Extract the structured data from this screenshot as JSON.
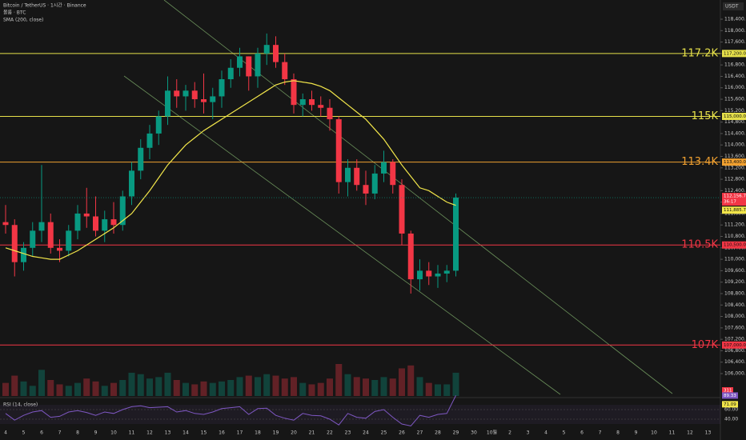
{
  "chart_data": {
    "type": "candlestick",
    "title": "Bitcoin / TetherUS · 1시간 · Binance",
    "volume_title": "볼륨 · BTC",
    "sma_title": "SMA (200, close)",
    "currency": "USDT",
    "up_color": "#089981",
    "down_color": "#f23645",
    "sma_color": "#f2e64a",
    "grid": false,
    "xticks": [
      "4",
      "5",
      "6",
      "7",
      "8",
      "9",
      "10",
      "11",
      "12",
      "13",
      "14",
      "15",
      "16",
      "17",
      "18",
      "19",
      "20",
      "21",
      "22",
      "23",
      "24",
      "25",
      "26",
      "27",
      "28",
      "29",
      "30",
      "10월",
      "2",
      "3",
      "4",
      "5",
      "6",
      "7",
      "8",
      "9",
      "10",
      "11",
      "12",
      "13"
    ],
    "open": [
      111300,
      111200,
      109900,
      110400,
      111000,
      111300,
      110400,
      110300,
      111000,
      111600,
      111500,
      111000,
      111400,
      111200,
      112200,
      113100,
      113900,
      114400,
      115000,
      115900,
      115700,
      115900,
      115600,
      115500,
      115700,
      116300,
      116700,
      117100,
      116400,
      117200,
      117500,
      116900,
      116300,
      115400,
      115600,
      115400,
      115300,
      114900,
      112700,
      113200,
      112600,
      112300,
      113000,
      113400,
      112600,
      110900,
      109300,
      109600,
      109400,
      109500,
      109600
    ],
    "high": [
      111900,
      111400,
      110600,
      111300,
      113300,
      111600,
      110700,
      111200,
      111900,
      112500,
      112200,
      111700,
      112000,
      112400,
      113400,
      114200,
      114700,
      115200,
      116400,
      116300,
      116100,
      116200,
      116500,
      116000,
      116600,
      117000,
      117400,
      117100,
      117400,
      117900,
      117800,
      117200,
      116500,
      115800,
      115900,
      115700,
      115600,
      115000,
      113500,
      113500,
      113100,
      113300,
      113800,
      113500,
      112800,
      111000,
      110000,
      109900,
      109800,
      109800,
      112300
    ],
    "low": [
      110900,
      109400,
      109600,
      110100,
      110600,
      110200,
      109900,
      110100,
      110700,
      111100,
      110800,
      110600,
      110900,
      111000,
      111900,
      112800,
      113500,
      114000,
      114700,
      115300,
      115200,
      115300,
      115100,
      114900,
      115300,
      116000,
      116400,
      115900,
      116000,
      116800,
      116700,
      116100,
      115100,
      115000,
      115200,
      115000,
      114500,
      112300,
      112200,
      112400,
      111900,
      112100,
      112700,
      112300,
      110500,
      108800,
      108900,
      109100,
      109000,
      109200,
      109400
    ],
    "close": [
      111200,
      109900,
      110400,
      111000,
      111300,
      110400,
      110300,
      111000,
      111600,
      111500,
      111000,
      111400,
      111200,
      112200,
      113100,
      113900,
      114400,
      115000,
      115900,
      115700,
      115900,
      115600,
      115500,
      115700,
      116300,
      116700,
      117100,
      116400,
      117200,
      117500,
      116900,
      116300,
      115400,
      115600,
      115400,
      115300,
      114900,
      112700,
      113200,
      112600,
      112300,
      113000,
      113400,
      112600,
      110900,
      109300,
      109600,
      109400,
      109500,
      109600,
      112156.78
    ],
    "sma": [
      110400,
      110300,
      110200,
      110100,
      110050,
      110000,
      110000,
      110150,
      110300,
      110500,
      110700,
      110900,
      111100,
      111350,
      111600,
      112000,
      112400,
      112850,
      113300,
      113650,
      114000,
      114250,
      114500,
      114700,
      114900,
      115100,
      115300,
      115500,
      115700,
      115900,
      116100,
      116200,
      116250,
      116200,
      116150,
      116050,
      115900,
      115650,
      115400,
      115150,
      114900,
      114550,
      114200,
      113750,
      113300,
      112900,
      112500,
      112400,
      112200,
      112000,
      111885.76
    ],
    "volume": [
      900,
      1400,
      1000,
      700,
      1800,
      1100,
      800,
      700,
      900,
      1200,
      1000,
      700,
      900,
      1100,
      1600,
      1500,
      1200,
      1300,
      1600,
      1100,
      900,
      800,
      1000,
      900,
      1000,
      1100,
      1300,
      1400,
      1300,
      1500,
      1400,
      1200,
      1300,
      900,
      800,
      900,
      1200,
      2200,
      1500,
      1300,
      1200,
      1100,
      1300,
      1200,
      1900,
      2100,
      1300,
      900,
      800,
      800,
      1600
    ],
    "volume_label": "311",
    "rsi_title": "RSI (14, close)",
    "rsi": [
      52,
      38,
      48,
      55,
      58,
      44,
      46,
      55,
      58,
      54,
      48,
      55,
      52,
      60,
      66,
      68,
      64,
      65,
      66,
      55,
      58,
      52,
      50,
      55,
      62,
      64,
      66,
      50,
      62,
      63,
      48,
      42,
      38,
      52,
      48,
      47,
      40,
      28,
      52,
      44,
      42,
      56,
      60,
      44,
      30,
      26,
      48,
      44,
      50,
      52,
      89.33
    ],
    "rsi_ma_last": 71.09,
    "rsi_ylim": [
      30,
      100
    ],
    "rsi_yticks": [
      {
        "value": 60,
        "label": "60.00"
      },
      {
        "value": 40,
        "label": "40.00"
      }
    ],
    "ylim": [
      105800,
      118700
    ],
    "yticks": [
      {
        "value": 106000,
        "label": "106,000.00"
      },
      {
        "value": 106400,
        "label": "106,400.00"
      },
      {
        "value": 106800,
        "label": "106,800.00"
      },
      {
        "value": 107200,
        "label": "107,200.00"
      },
      {
        "value": 107600,
        "label": "107,600.00"
      },
      {
        "value": 108000,
        "label": "108,000.00"
      },
      {
        "value": 108400,
        "label": "108,400.00"
      },
      {
        "value": 108800,
        "label": "108,800.00"
      },
      {
        "value": 109200,
        "label": "109,200.00"
      },
      {
        "value": 109600,
        "label": "109,600.00"
      },
      {
        "value": 110000,
        "label": "110,000.00"
      },
      {
        "value": 110400,
        "label": "110,400.00"
      },
      {
        "value": 110800,
        "label": "110,800.00"
      },
      {
        "value": 111200,
        "label": "111,200.00"
      },
      {
        "value": 111600,
        "label": "111,600.00"
      },
      {
        "value": 112000,
        "label": "112,000.00"
      },
      {
        "value": 112400,
        "label": "112,400.00"
      },
      {
        "value": 112800,
        "label": "112,800.00"
      },
      {
        "value": 113200,
        "label": "113,200.00"
      },
      {
        "value": 113600,
        "label": "113,600.00"
      },
      {
        "value": 114000,
        "label": "114,000.00"
      },
      {
        "value": 114400,
        "label": "114,400.00"
      },
      {
        "value": 114800,
        "label": "114,800.00"
      },
      {
        "value": 115200,
        "label": "115,200.00"
      },
      {
        "value": 115600,
        "label": "115,600.00"
      },
      {
        "value": 116000,
        "label": "116,000.00"
      },
      {
        "value": 116400,
        "label": "116,400.00"
      },
      {
        "value": 116800,
        "label": "116,800.00"
      },
      {
        "value": 117200,
        "label": "117,200.00"
      },
      {
        "value": 117600,
        "label": "117,600.00"
      },
      {
        "value": 118000,
        "label": "118,000.00"
      },
      {
        "value": 118400,
        "label": "118,400.00"
      }
    ],
    "levels": [
      {
        "value": 117200,
        "label": "117.2K",
        "tag": "117,200.00",
        "color": "#e6e04a"
      },
      {
        "value": 115000,
        "label": "115K",
        "tag": "115,000.00",
        "color": "#e6e04a"
      },
      {
        "value": 113400,
        "label": "113.4K",
        "tag": "113,400.00",
        "color": "#f0a030"
      },
      {
        "value": 110500,
        "label": "110.5K",
        "tag": "110,500.00",
        "color": "#f23645"
      },
      {
        "value": 107000,
        "label": "107K",
        "tag": "107,000.00",
        "color": "#f23645"
      }
    ],
    "last_price": {
      "value": 112156.78,
      "label": "112,156.78",
      "countdown": "36:17"
    },
    "sma_last": {
      "value": 111885.76,
      "label": "111,885.76"
    }
  }
}
